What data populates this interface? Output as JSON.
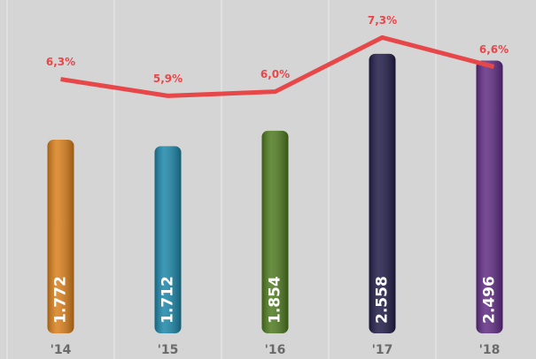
{
  "chart_data": {
    "type": "bar",
    "categories": [
      "'14",
      "'15",
      "'16",
      "'17",
      "'18"
    ],
    "series": [
      {
        "type": "bar",
        "values": [
          1.772,
          1.712,
          1.854,
          2.558,
          2.496
        ],
        "colors": [
          "#d97f1b",
          "#1b86a8",
          "#4e7a1f",
          "#1f1b47",
          "#5f2b83"
        ]
      },
      {
        "type": "line",
        "axis": "y2",
        "color": "#e8474a",
        "values": [
          6.3,
          5.9,
          6.0,
          7.3,
          6.6
        ],
        "value_labels": [
          "6,3%",
          "5,9%",
          "6,0%",
          "7,3%",
          "6,6%"
        ]
      }
    ],
    "ylim": [
      0,
      3.05
    ],
    "y2lim": [
      0.2,
      8.2
    ]
  }
}
